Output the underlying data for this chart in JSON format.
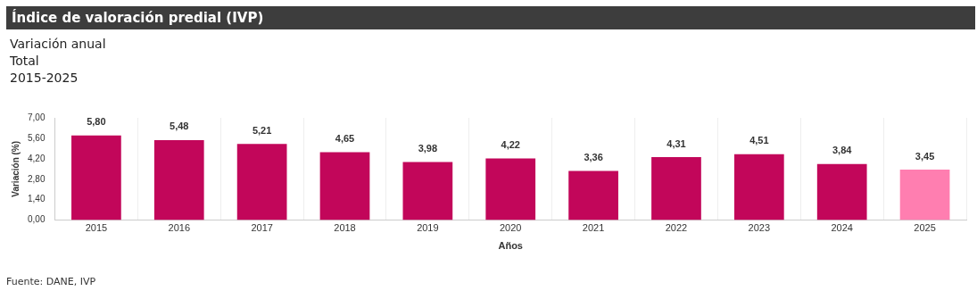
{
  "chart_data": {
    "type": "bar",
    "title": "Índice de valoración predial (IVP)",
    "subtitle": "Variación anual\nTotal\n2015-2025",
    "xlabel": "Años",
    "ylabel": "Variación (%)",
    "categories": [
      "2015",
      "2016",
      "2017",
      "2018",
      "2019",
      "2020",
      "2021",
      "2022",
      "2023",
      "2024",
      "2025"
    ],
    "values": [
      5.8,
      5.48,
      5.21,
      4.65,
      3.98,
      4.22,
      3.36,
      4.31,
      4.51,
      3.84,
      3.45
    ],
    "value_labels": [
      "5,80",
      "5,48",
      "5,21",
      "4,65",
      "3,98",
      "4,22",
      "3,36",
      "4,31",
      "4,51",
      "3,84",
      "3,45"
    ],
    "colors": [
      "#c2065a",
      "#c2065a",
      "#c2065a",
      "#c2065a",
      "#c2065a",
      "#c2065a",
      "#c2065a",
      "#c2065a",
      "#c2065a",
      "#c2065a",
      "#ff7eb0"
    ],
    "ylim": [
      0,
      7
    ],
    "yticks": [
      {
        "value": 0,
        "label": "0,00"
      },
      {
        "value": 1.4,
        "label": "1,40"
      },
      {
        "value": 2.8,
        "label": "2,80"
      },
      {
        "value": 4.2,
        "label": "4,20"
      },
      {
        "value": 5.6,
        "label": "5,60"
      },
      {
        "value": 7,
        "label": "7,00"
      }
    ],
    "grid": "x",
    "legend": false,
    "annotations": [
      "Fuente: DANE, IVP"
    ]
  }
}
